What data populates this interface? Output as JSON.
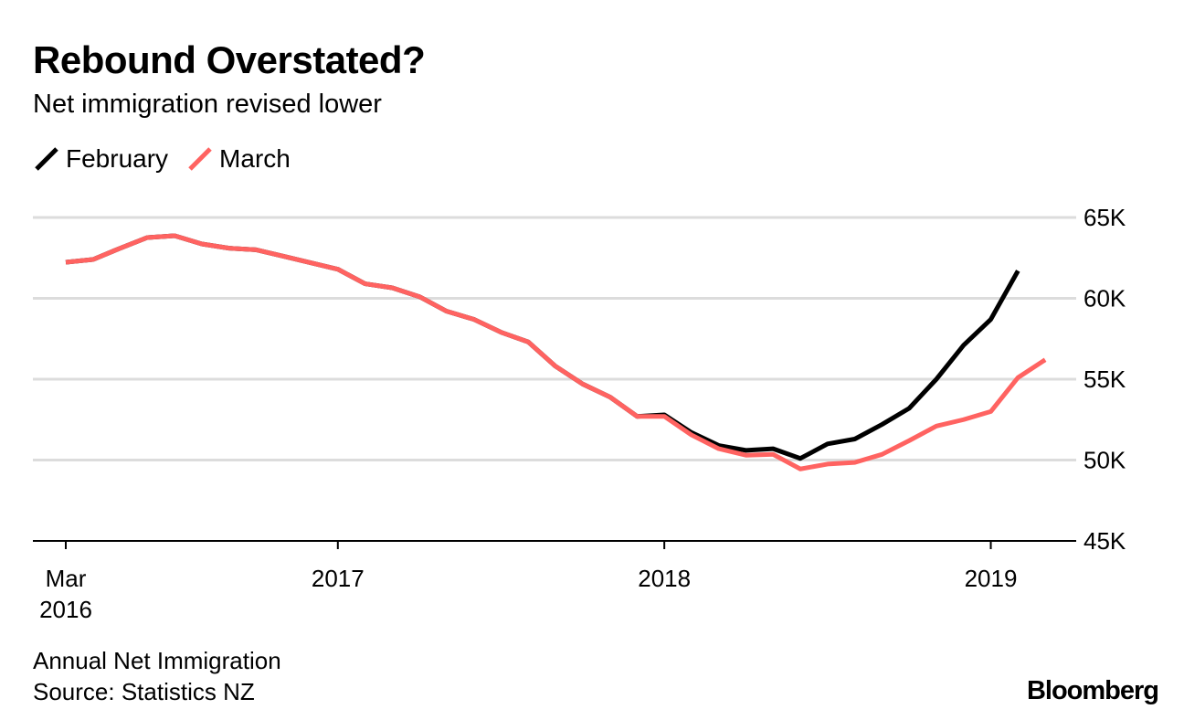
{
  "chart_data": {
    "type": "line",
    "title": "Rebound Overstated?",
    "subtitle": "Net immigration revised lower",
    "x": [
      "2016-03",
      "2016-04",
      "2016-05",
      "2016-06",
      "2016-07",
      "2016-08",
      "2016-09",
      "2016-10",
      "2016-11",
      "2016-12",
      "2017-01",
      "2017-02",
      "2017-03",
      "2017-04",
      "2017-05",
      "2017-06",
      "2017-07",
      "2017-08",
      "2017-09",
      "2017-10",
      "2017-11",
      "2017-12",
      "2018-01",
      "2018-02",
      "2018-03",
      "2018-04",
      "2018-05",
      "2018-06",
      "2018-07",
      "2018-08",
      "2018-09",
      "2018-10",
      "2018-11",
      "2018-12",
      "2019-01",
      "2019-02",
      "2019-03"
    ],
    "series": [
      {
        "name": "February",
        "color": "#000000",
        "values": [
          62.23,
          62.4,
          63.1,
          63.76,
          63.87,
          63.36,
          63.1,
          63.0,
          62.6,
          62.2,
          61.8,
          60.9,
          60.65,
          60.1,
          59.2,
          58.7,
          57.9,
          57.3,
          55.8,
          54.7,
          53.9,
          52.7,
          52.8,
          51.7,
          50.9,
          50.6,
          50.7,
          50.1,
          51.0,
          51.3,
          52.2,
          53.2,
          55.0,
          57.1,
          58.7,
          61.7,
          null
        ]
      },
      {
        "name": "March",
        "color": "#ff6361",
        "values": [
          62.23,
          62.4,
          63.1,
          63.76,
          63.87,
          63.36,
          63.1,
          63.0,
          62.6,
          62.2,
          61.8,
          60.9,
          60.65,
          60.1,
          59.2,
          58.7,
          57.9,
          57.3,
          55.8,
          54.7,
          53.9,
          52.7,
          52.7,
          51.55,
          50.7,
          50.3,
          50.35,
          49.45,
          49.75,
          49.85,
          50.35,
          51.2,
          52.1,
          52.5,
          53.0,
          55.1,
          56.2
        ]
      }
    ],
    "units": "thousands",
    "ylim": [
      45,
      65
    ],
    "y_ticks": [
      {
        "value": 65,
        "label": "65K"
      },
      {
        "value": 60,
        "label": "60K"
      },
      {
        "value": 55,
        "label": "55K"
      },
      {
        "value": 50,
        "label": "50K"
      },
      {
        "value": 45,
        "label": "45K"
      }
    ],
    "x_ticks": [
      {
        "index": 0,
        "label": "Mar",
        "label2": "2016"
      },
      {
        "index": 10,
        "label": "2017",
        "label2": ""
      },
      {
        "index": 22,
        "label": "2018",
        "label2": ""
      },
      {
        "index": 34,
        "label": "2019",
        "label2": ""
      }
    ],
    "grid": true,
    "y_axis_side": "right",
    "legend": "top-left"
  },
  "footer": {
    "note": "Annual Net Immigration",
    "source": "Source: Statistics NZ"
  },
  "logo": "Bloomberg"
}
